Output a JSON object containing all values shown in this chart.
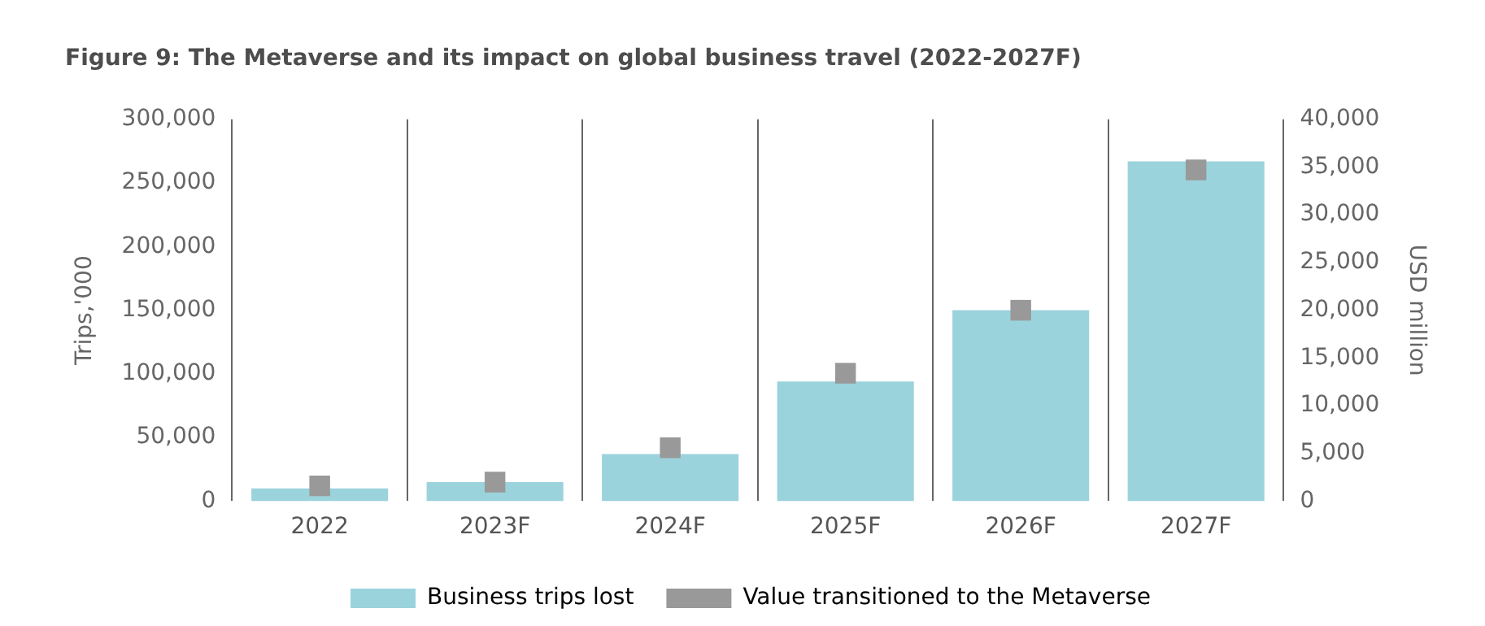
{
  "chart_data": {
    "type": "bar",
    "title": "Figure 9: The Metaverse and its impact on global business travel (2022-2027F)",
    "ylabel": "Trips,'000",
    "y2label": "USD million",
    "categories": [
      "2022",
      "2023F",
      "2024F",
      "2025F",
      "2026F",
      "2027F"
    ],
    "series": [
      {
        "name": "Business trips lost",
        "color": "#9bd3dc",
        "values": [
          10000,
          15000,
          37000,
          94000,
          150000,
          267000
        ]
      },
      {
        "name": "Value transitioned to the Metaverse",
        "type": "scatter",
        "axis": "y2",
        "color": "#999999",
        "values": [
          1600,
          2000,
          5600,
          13400,
          20000,
          34700
        ]
      }
    ],
    "ylim": [
      0,
      300000
    ],
    "yticks": [
      0,
      {
        "value": 50000,
        "label": "50,000"
      },
      {
        "value": 100000,
        "label": "100,000"
      },
      {
        "value": 150000,
        "label": "150,000"
      },
      {
        "value": 200000,
        "label": "200,000"
      },
      {
        "value": 250000,
        "label": "250,000"
      },
      {
        "value": 300000,
        "label": "300,000"
      }
    ],
    "y2lim": [
      0,
      40000
    ],
    "y2ticks": [
      0,
      {
        "value": 5000,
        "label": "5,000"
      },
      {
        "value": 10000,
        "label": "10,000"
      },
      {
        "value": 15000,
        "label": "15,000"
      },
      {
        "value": 20000,
        "label": "20,000"
      },
      {
        "value": 25000,
        "label": "25,000"
      },
      {
        "value": 30000,
        "label": "30,000"
      },
      {
        "value": 35000,
        "label": "35,000"
      },
      {
        "value": 40000,
        "label": "40,000"
      }
    ],
    "grid": "x",
    "legend": "bottom",
    "marker": "square"
  }
}
